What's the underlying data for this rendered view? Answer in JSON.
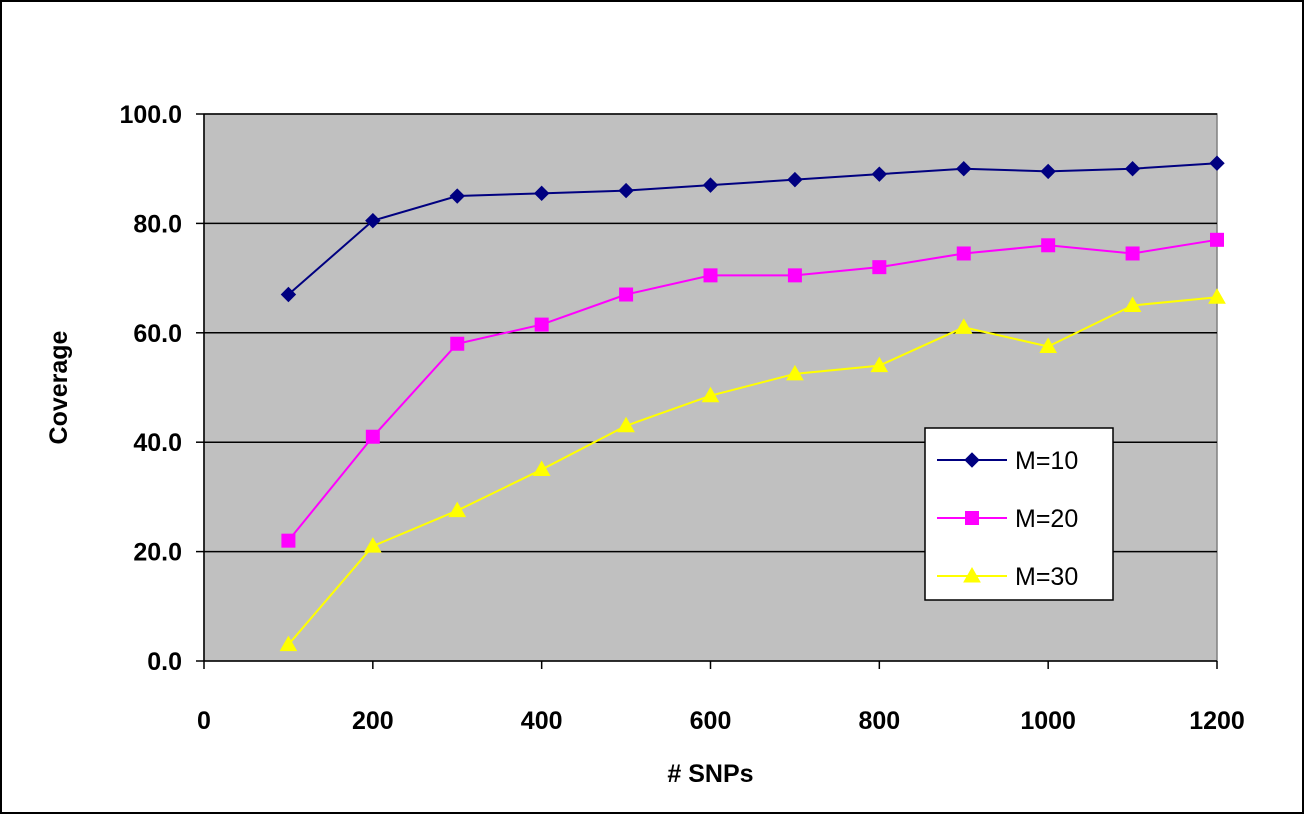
{
  "chart_data": {
    "type": "line",
    "title": "",
    "xlabel": "# SNPs",
    "ylabel": "Coverage",
    "xlim": [
      0,
      1200
    ],
    "ylim": [
      0,
      100
    ],
    "xticks": [
      0,
      200,
      400,
      600,
      800,
      1000,
      1200
    ],
    "xtick_labels": [
      "0",
      "200",
      "400",
      "600",
      "800",
      "1000",
      "1200"
    ],
    "yticks": [
      0,
      20,
      40,
      60,
      80,
      100
    ],
    "ytick_labels": [
      "0.0",
      "20.0",
      "40.0",
      "60.0",
      "80.0",
      "100.0"
    ],
    "grid": "horizontal",
    "legend_position": "right",
    "plot_background": "#c0c0c0",
    "x": [
      100,
      200,
      300,
      400,
      500,
      600,
      700,
      800,
      900,
      1000,
      1100,
      1200
    ],
    "series": [
      {
        "name": "M=10",
        "color": "#000080",
        "marker": "diamond",
        "values": [
          67,
          80.5,
          85,
          85.5,
          86,
          87,
          88,
          89,
          90,
          89.5,
          90,
          91
        ]
      },
      {
        "name": "M=20",
        "color": "#ff00ff",
        "marker": "square",
        "values": [
          22,
          41,
          58,
          61.5,
          67,
          70.5,
          70.5,
          72,
          74.5,
          76,
          74.5,
          77
        ]
      },
      {
        "name": "M=30",
        "color": "#ffff00",
        "marker": "triangle",
        "values": [
          3,
          21,
          27.5,
          35,
          43,
          48.5,
          52.5,
          54,
          61,
          57.5,
          65,
          66.5
        ]
      }
    ]
  }
}
